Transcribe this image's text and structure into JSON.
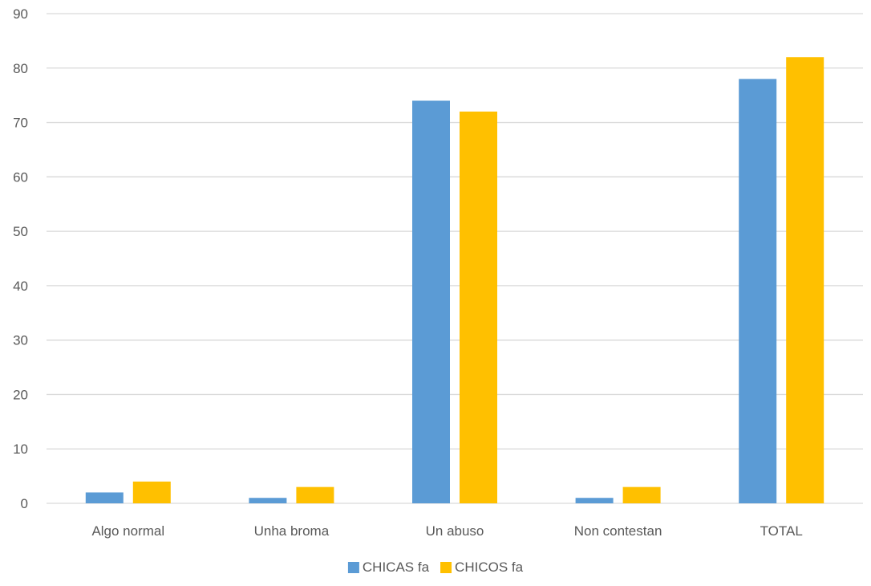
{
  "chart_data": {
    "type": "bar",
    "title": "",
    "xlabel": "",
    "ylabel": "",
    "categories": [
      "Algo normal",
      "Unha broma",
      "Un abuso",
      "Non contestan",
      "TOTAL"
    ],
    "series": [
      {
        "name": "CHICAS fa",
        "values": [
          2,
          1,
          74,
          1,
          78
        ],
        "color": "#5B9BD5"
      },
      {
        "name": "CHICOS fa",
        "values": [
          4,
          3,
          72,
          3,
          82
        ],
        "color": "#FFC000"
      }
    ],
    "ylim": [
      0,
      90
    ],
    "yticks": [
      "0",
      "10",
      "20",
      "30",
      "40",
      "50",
      "60",
      "70",
      "80",
      "90"
    ],
    "grid": true,
    "legend_position": "bottom",
    "colors": {
      "grid": "#D9D9D9",
      "text": "#595959"
    }
  }
}
